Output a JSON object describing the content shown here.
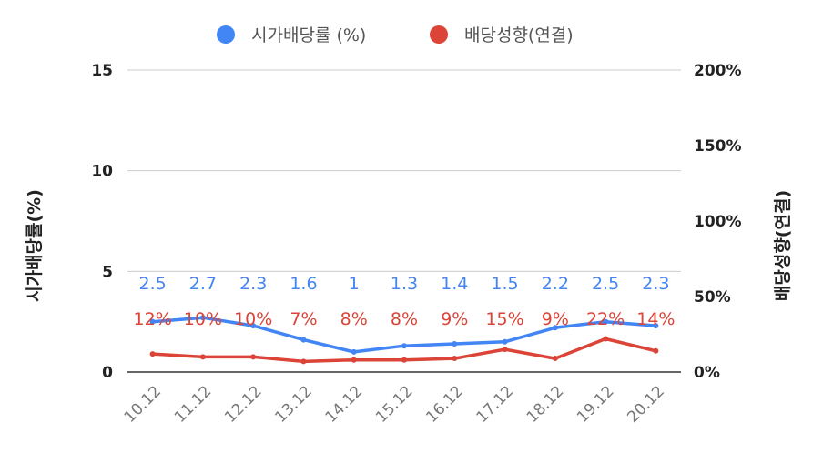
{
  "chart_data": {
    "type": "line",
    "categories": [
      "10.12",
      "11.12",
      "12.12",
      "13.12",
      "14.12",
      "15.12",
      "16.12",
      "17.12",
      "18.12",
      "19.12",
      "20.12"
    ],
    "series": [
      {
        "name": "시가배당률 (%)",
        "axis": "left",
        "color": "#4285f4",
        "values": [
          2.5,
          2.7,
          2.3,
          1.6,
          1,
          1.3,
          1.4,
          1.5,
          2.2,
          2.5,
          2.3
        ],
        "labels": [
          "2.5",
          "2.7",
          "2.3",
          "1.6",
          "1",
          "1.3",
          "1.4",
          "1.5",
          "2.2",
          "2.5",
          "2.3"
        ]
      },
      {
        "name": "배당성향(연결)",
        "axis": "right",
        "color": "#db4437",
        "values": [
          12,
          10,
          10,
          7,
          8,
          8,
          9,
          15,
          9,
          22,
          14
        ],
        "labels": [
          "12%",
          "10%",
          "10%",
          "7%",
          "8%",
          "8%",
          "9%",
          "15%",
          "9%",
          "22%",
          "14%"
        ]
      }
    ],
    "y_left": {
      "label": "시가배당률(%)",
      "ylim": [
        0,
        15
      ],
      "ticks": [
        "0",
        "5",
        "10",
        "15"
      ],
      "tick_values": [
        0,
        5,
        10,
        15
      ]
    },
    "y_right": {
      "label": "배당성향(연결)",
      "ylim": [
        0,
        200
      ],
      "ticks": [
        "0%",
        "50%",
        "100%",
        "150%",
        "200%"
      ],
      "tick_values": [
        0,
        50,
        100,
        150,
        200
      ]
    },
    "legend_position": "top",
    "grid": true
  }
}
